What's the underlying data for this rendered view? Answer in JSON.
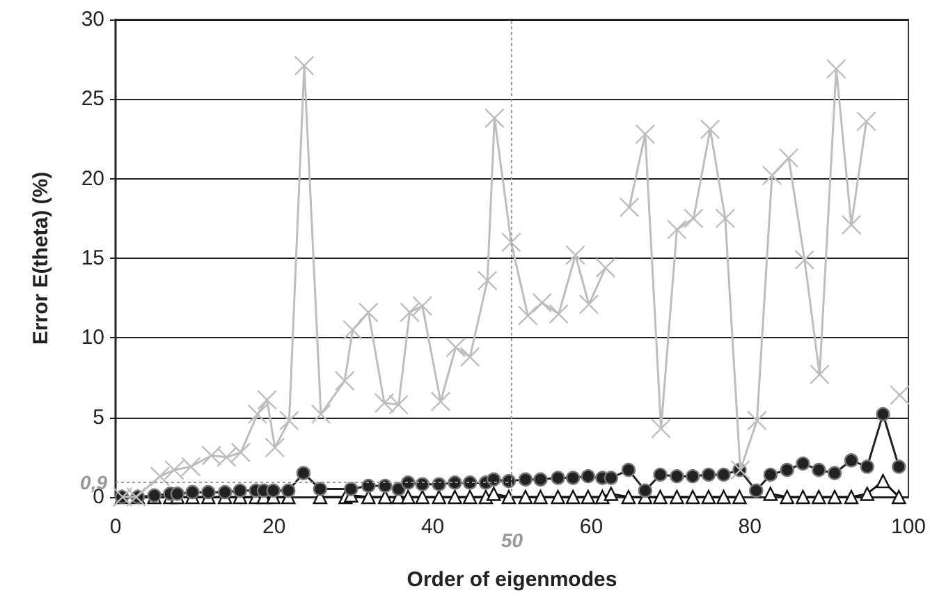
{
  "chart_data": {
    "type": "line",
    "xlabel": "Order of eigenmodes",
    "ylabel": "Error E(theta) (%)",
    "xlim": [
      0,
      100
    ],
    "xticks": [
      0,
      20,
      40,
      60,
      80,
      100
    ],
    "ylim": [
      0,
      30
    ],
    "yticks": [
      0,
      5,
      10,
      15,
      20,
      25,
      30
    ],
    "grid": "y",
    "series": [
      {
        "color": "#bdbdbd",
        "marker": "cross",
        "x": [
          0.9,
          2.6,
          5.6,
          7.4,
          9.5,
          12.1,
          14,
          15.8,
          17.9,
          19.1,
          20.1,
          21.9,
          23.8,
          25.9,
          28.9,
          29.9,
          31.9,
          33.9,
          35.7,
          37.1,
          38.7,
          41,
          42.9,
          44.7,
          46.9,
          47.8,
          49.9,
          52,
          53.8,
          55.9,
          58,
          59.7,
          61.8,
          62.9,
          64.8,
          66.8,
          68.8,
          70.8,
          72.9,
          75,
          76.9,
          78.8,
          80.9,
          82.8,
          84.9,
          86.9,
          88.8,
          90.9,
          92.8,
          94.7,
          96.5,
          98.9
        ],
        "values": [
          0,
          0,
          1.3,
          1.7,
          1.9,
          2.6,
          2.5,
          2.8,
          5.2,
          6.1,
          3.1,
          4.8,
          27.1,
          5.2,
          7.3,
          10.5,
          11.6,
          5.9,
          5.8,
          11.6,
          12.0,
          6.0,
          9.4,
          8.8,
          13.6,
          23.8,
          16.0,
          11.4,
          12.2,
          11.5,
          15.2,
          12.1,
          14.4,
          null,
          18.2,
          22.8,
          4.3,
          16.8,
          17.5,
          23.1,
          17.5,
          1.7,
          4.8,
          20.2,
          21.3,
          14.9,
          7.7,
          26.9,
          17.1,
          23.6,
          null,
          6.4
        ]
      },
      {
        "color": "#222222",
        "marker": "circle",
        "x": [
          0.8,
          2.8,
          4.9,
          6.9,
          7.8,
          9.7,
          11.7,
          13.8,
          15.7,
          17.7,
          18.7,
          19.9,
          21.8,
          23.7,
          25.8,
          29.7,
          31.9,
          34,
          35.7,
          36.9,
          38.7,
          40.8,
          42.8,
          44.7,
          46.7,
          47.7,
          49.6,
          51.7,
          53.6,
          55.8,
          57.7,
          59.6,
          61.4,
          62.5,
          64.7,
          66.8,
          68.7,
          70.8,
          72.8,
          74.8,
          76.7,
          78.7,
          80.8,
          82.6,
          84.7,
          86.7,
          88.7,
          90.7,
          92.8,
          94.8,
          96.8,
          98.8
        ],
        "values": [
          0,
          0,
          0.1,
          0.2,
          0.2,
          0.3,
          0.3,
          0.3,
          0.4,
          0.4,
          0.4,
          0.4,
          0.4,
          1.5,
          0.5,
          0.5,
          0.7,
          0.7,
          0.5,
          0.9,
          0.8,
          0.8,
          0.9,
          0.9,
          0.9,
          1.1,
          1.0,
          1.1,
          1.1,
          1.2,
          1.2,
          1.3,
          1.2,
          1.2,
          1.7,
          0.4,
          1.4,
          1.3,
          1.3,
          1.4,
          1.4,
          1.7,
          0.4,
          1.4,
          1.7,
          2.1,
          1.7,
          1.5,
          2.3,
          1.9,
          5.2,
          1.9
        ]
      },
      {
        "color": "#111111",
        "marker": "triangle",
        "x": [
          0.8,
          2.8,
          4.9,
          6.9,
          7.8,
          9.7,
          11.7,
          13.8,
          15.7,
          17.7,
          18.7,
          19.9,
          21.8,
          23.7,
          25.8,
          29,
          29.7,
          31.9,
          34,
          35.7,
          36.9,
          38.7,
          40.8,
          42.8,
          44.7,
          46.7,
          47.7,
          49.6,
          51.7,
          53.6,
          55.8,
          57.7,
          59.6,
          61.4,
          62.5,
          64.7,
          66.8,
          68.7,
          70.8,
          72.8,
          74.8,
          76.7,
          78.7,
          80.8,
          82.6,
          84.7,
          86.7,
          88.7,
          90.7,
          92.8,
          94.8,
          96.8,
          98.8
        ],
        "values": [
          0,
          0,
          0,
          0,
          0,
          0,
          0,
          0,
          0,
          0,
          0,
          0,
          0,
          null,
          0,
          0,
          0.1,
          0,
          0,
          0,
          0,
          0,
          0,
          0,
          0,
          0,
          0.2,
          0,
          0,
          0,
          0,
          0,
          0,
          0,
          0.2,
          0,
          0,
          0,
          0,
          0,
          0,
          0,
          0,
          null,
          0.2,
          0,
          0,
          0,
          0,
          0,
          0.2,
          1.0,
          0
        ]
      }
    ],
    "ref_lines": [
      {
        "axis": "y",
        "value": 0.9,
        "label": "0,9",
        "color": "#999999",
        "line_style": "dotted"
      },
      {
        "axis": "x",
        "value": 50,
        "label": "50",
        "color": "#999999",
        "line_style": "dotted"
      }
    ]
  }
}
